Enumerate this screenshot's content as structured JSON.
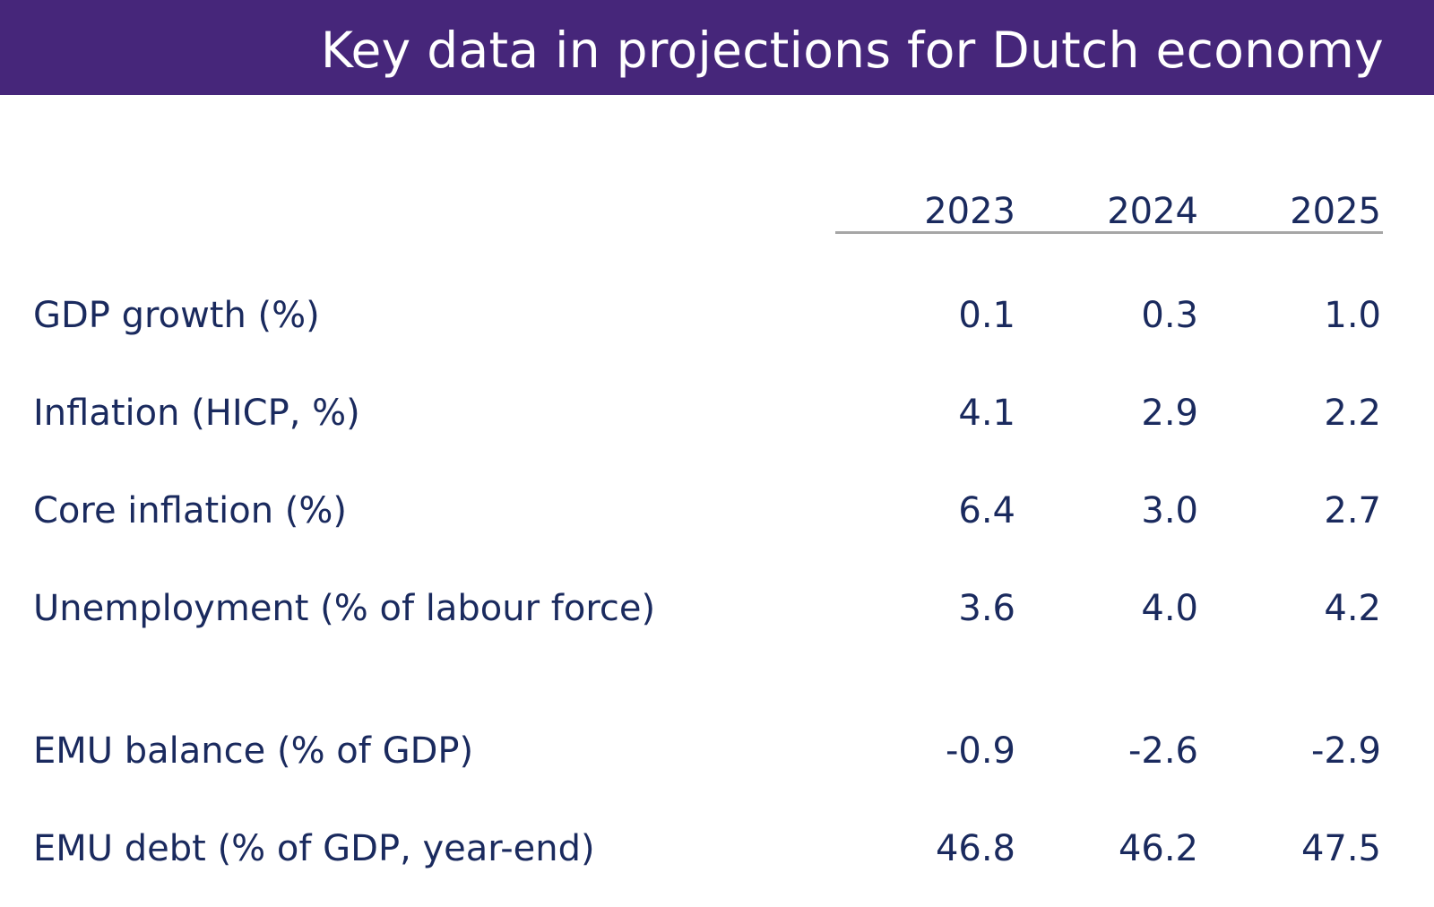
{
  "title": "Key data in projections for Dutch economy",
  "colors": {
    "title_bar": "#46267a",
    "title_text": "#ffffff",
    "body_text": "#1a2a5e",
    "rule": "#a6a6a6"
  },
  "table": {
    "years": [
      "2023",
      "2024",
      "2025"
    ],
    "rows": [
      {
        "label": "GDP growth (%)",
        "values": [
          "0.1",
          "0.3",
          "1.0"
        ]
      },
      {
        "label": "Inflation (HICP, %)",
        "values": [
          "4.1",
          "2.9",
          "2.2"
        ]
      },
      {
        "label": "Core inflation (%)",
        "values": [
          "6.4",
          "3.0",
          "2.7"
        ]
      },
      {
        "label": "Unemployment (% of labour force)",
        "values": [
          "3.6",
          "4.0",
          "4.2"
        ]
      },
      {
        "label": "EMU balance (% of GDP)",
        "values": [
          "-0.9",
          "-2.6",
          "-2.9"
        ]
      },
      {
        "label": "EMU debt (% of GDP, year-end)",
        "values": [
          "46.8",
          "46.2",
          "47.5"
        ]
      }
    ]
  }
}
